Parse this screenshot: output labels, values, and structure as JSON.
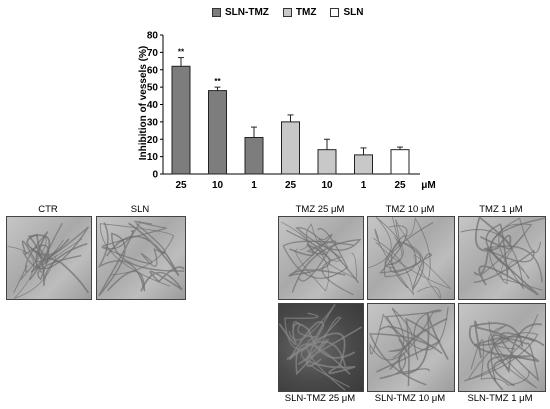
{
  "chart_data": {
    "type": "bar",
    "ylabel": "Inhibition of vessels (%)",
    "ylim": [
      0,
      80
    ],
    "yticks": [
      0,
      10,
      20,
      30,
      40,
      50,
      60,
      70,
      80
    ],
    "x_unit": "μM",
    "series": [
      {
        "name": "SLN-TMZ",
        "color": "#7d7d7d",
        "categories": [
          "25",
          "10",
          "1"
        ],
        "values": [
          62,
          48,
          21
        ],
        "errors": [
          5,
          2,
          6
        ],
        "annotations": [
          "**",
          "**",
          ""
        ]
      },
      {
        "name": "TMZ",
        "color": "#c8c8c8",
        "categories": [
          "25",
          "10",
          "1"
        ],
        "values": [
          30,
          14,
          11
        ],
        "errors": [
          4,
          6,
          4
        ],
        "annotations": [
          "",
          "",
          ""
        ]
      },
      {
        "name": "SLN",
        "color": "#ffffff",
        "categories": [
          "25"
        ],
        "values": [
          14
        ],
        "errors": [
          1.5
        ],
        "annotations": [
          ""
        ]
      }
    ]
  },
  "panels": [
    {
      "caption": "CTR"
    },
    {
      "caption": "SLN"
    },
    {
      "caption": "TMZ 25 μM"
    },
    {
      "caption": "TMZ 10 μM"
    },
    {
      "caption": "TMZ 1 μM"
    },
    {
      "caption": "SLN-TMZ 25 μM"
    },
    {
      "caption": "SLN-TMZ 10 μM"
    },
    {
      "caption": "SLN-TMZ 1 μM"
    }
  ]
}
